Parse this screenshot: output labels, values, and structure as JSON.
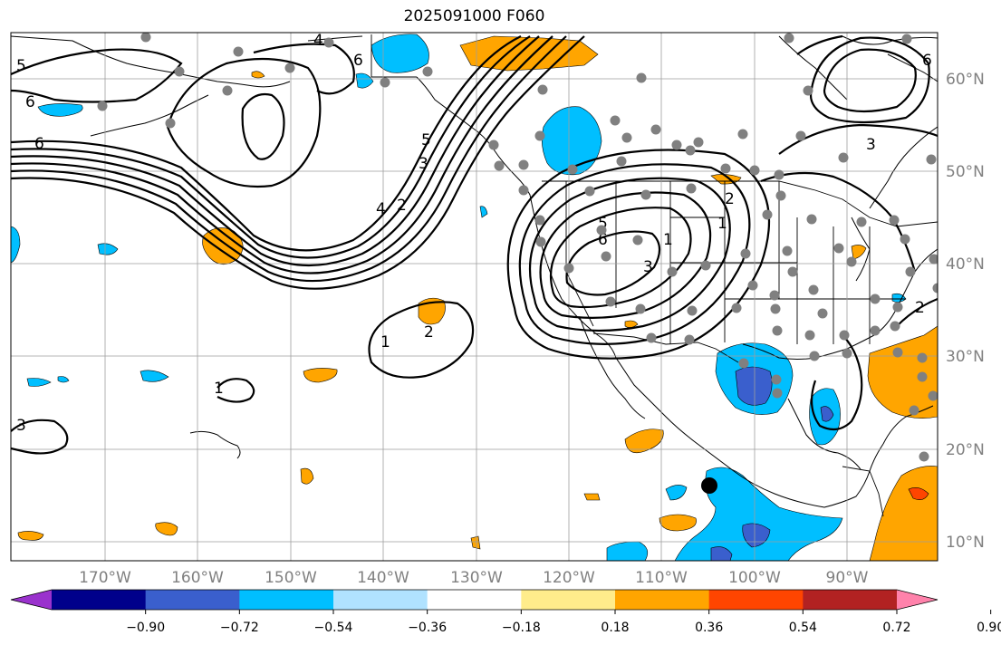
{
  "title": "2025091000 F060",
  "map": {
    "lon_labels": [
      "170°W",
      "160°W",
      "150°W",
      "140°W",
      "130°W",
      "120°W",
      "110°W",
      "100°W",
      "90°W"
    ],
    "lat_labels": [
      "60°N",
      "50°N",
      "40°N",
      "30°N",
      "20°N",
      "10°N"
    ],
    "contour_labels": [
      "4",
      "6",
      "5",
      "6",
      "6",
      "2",
      "4",
      "3",
      "5",
      "6",
      "5",
      "3",
      "1",
      "2",
      "1",
      "3",
      "2",
      "1",
      "1",
      "3",
      "6",
      "2"
    ],
    "marker": "black-dot-storm-location"
  },
  "colorbar": {
    "ticks": [
      "−0.90",
      "−0.72",
      "−0.54",
      "−0.36",
      "−0.18",
      "0.18",
      "0.36",
      "0.54",
      "0.72",
      "0.90"
    ],
    "colors": [
      "#9a32cd",
      "#00008b",
      "#3a5fcd",
      "#00bfff",
      "#b0e2ff",
      "#ffffff",
      "#ffec8b",
      "#ffa500",
      "#ff4500",
      "#b22222",
      "#ff82ab"
    ],
    "extend": "both"
  }
}
